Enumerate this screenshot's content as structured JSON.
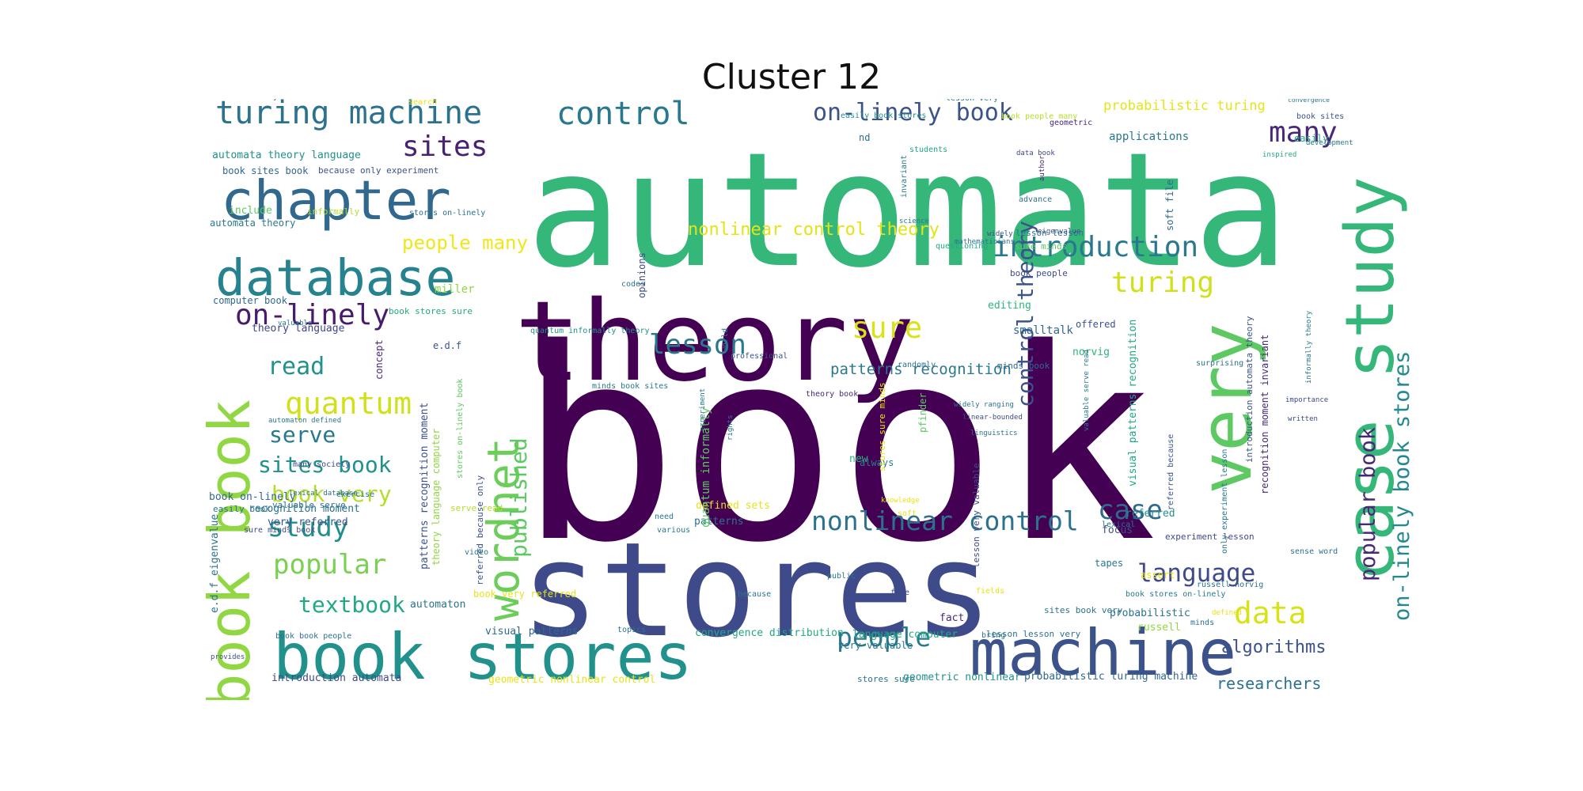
{
  "title": "Cluster 12",
  "palette": {
    "dark_purple": "#440154",
    "indigo": "#3b528b",
    "blue": "#2c6e8e",
    "teal": "#21918c",
    "green": "#35b779",
    "lime": "#90d743",
    "yellow": "#e5e419"
  },
  "words": [
    {
      "text": "book",
      "color": "#440154"
    },
    {
      "text": "automata",
      "color": "#35b779"
    },
    {
      "text": "stores",
      "color": "#3e4a89"
    },
    {
      "text": "theory",
      "color": "#440154"
    },
    {
      "text": "book stores",
      "color": "#21918c"
    },
    {
      "text": "machine",
      "color": "#3b528b"
    },
    {
      "text": "case study",
      "color": "#35b779"
    },
    {
      "text": "very",
      "color": "#5ec962"
    },
    {
      "text": "wordnet",
      "color": "#6ccd5a"
    },
    {
      "text": "book book",
      "color": "#90d743"
    },
    {
      "text": "chapter",
      "color": "#31688e"
    },
    {
      "text": "database",
      "color": "#26828e"
    },
    {
      "text": "turing machine",
      "color": "#2c728e"
    },
    {
      "text": "control",
      "color": "#2a788e"
    },
    {
      "text": "on-linely book",
      "color": "#3b528b"
    },
    {
      "text": "sites",
      "color": "#482173"
    },
    {
      "text": "many",
      "color": "#482878"
    },
    {
      "text": "introduction",
      "color": "#2a788e"
    },
    {
      "text": "nonlinear control theory",
      "color": "#e2e418"
    },
    {
      "text": "people many",
      "color": "#f1e51d"
    },
    {
      "text": "turing",
      "color": "#d0e11c"
    },
    {
      "text": "on-linely",
      "color": "#481a6c"
    },
    {
      "text": "lesson",
      "color": "#2a788e"
    },
    {
      "text": "sure",
      "color": "#d8e219"
    },
    {
      "text": "nonlinear",
      "color": "#3e4a89"
    },
    {
      "text": "popular book",
      "color": "#482878"
    },
    {
      "text": "on-linely book stores",
      "color": "#23898e"
    },
    {
      "text": "control theory",
      "color": "#3b528b"
    },
    {
      "text": "read",
      "color": "#21918c"
    },
    {
      "text": "quantum",
      "color": "#d0e11c"
    },
    {
      "text": "serve",
      "color": "#2a788e"
    },
    {
      "text": "sites book",
      "color": "#21918c"
    },
    {
      "text": "book very",
      "color": "#b5de2b"
    },
    {
      "text": "study",
      "color": "#218e8d"
    },
    {
      "text": "popular",
      "color": "#7ad151"
    },
    {
      "text": "textbook",
      "color": "#22a884"
    },
    {
      "text": "published",
      "color": "#5ec962"
    },
    {
      "text": "nonlinear control",
      "color": "#2c728e"
    },
    {
      "text": "case",
      "color": "#31688e"
    },
    {
      "text": "language",
      "color": "#3e4a89"
    },
    {
      "text": "people",
      "color": "#2a788e"
    },
    {
      "text": "data",
      "color": "#d8e219"
    },
    {
      "text": "algorithms",
      "color": "#3b528b"
    },
    {
      "text": "researchers",
      "color": "#2c728e"
    },
    {
      "text": "patterns recognition",
      "color": "#2a788e"
    },
    {
      "text": "probabilistic turing",
      "color": "#e5e419"
    },
    {
      "text": "applications",
      "color": "#2a788e"
    },
    {
      "text": "automata theory language",
      "color": "#21918c"
    },
    {
      "text": "book sites book",
      "color": "#31688e"
    },
    {
      "text": "because only experiment",
      "color": "#3b528b"
    },
    {
      "text": "automata theory",
      "color": "#2a788e"
    },
    {
      "text": "include",
      "color": "#5ec962"
    },
    {
      "text": "informally",
      "color": "#b5de2b"
    },
    {
      "text": "computer book",
      "color": "#31688e"
    },
    {
      "text": "theory language",
      "color": "#404688"
    },
    {
      "text": "miller",
      "color": "#90d743"
    },
    {
      "text": "book stores sure",
      "color": "#22a884"
    },
    {
      "text": "stores on-linely",
      "color": "#2c728e"
    },
    {
      "text": "e.d.f",
      "color": "#3b528b"
    },
    {
      "text": "concept",
      "color": "#482878"
    },
    {
      "text": "smalltalk",
      "color": "#31688e"
    },
    {
      "text": "editing",
      "color": "#2fb47c"
    },
    {
      "text": "norvig",
      "color": "#2fb47c"
    },
    {
      "text": "offered",
      "color": "#3b528b"
    },
    {
      "text": "soft file",
      "color": "#31688e"
    },
    {
      "text": "book people",
      "color": "#3e4a89"
    },
    {
      "text": "lesson lesson",
      "color": "#2c728e"
    },
    {
      "text": "sure minds",
      "color": "#5ec962"
    },
    {
      "text": "minds book",
      "color": "#31688e"
    },
    {
      "text": "minds book sites",
      "color": "#2a788e"
    },
    {
      "text": "quantum informally theory",
      "color": "#21918c"
    },
    {
      "text": "visual patterns recognition",
      "color": "#22a884"
    },
    {
      "text": "introduction automata theory",
      "color": "#3b528b"
    },
    {
      "text": "recognition moment invariant",
      "color": "#482878"
    },
    {
      "text": "patterns recognition moment",
      "color": "#3b528b"
    },
    {
      "text": "theory language computer",
      "color": "#90d743"
    },
    {
      "text": "referred because only",
      "color": "#3b528b"
    },
    {
      "text": "defined sets",
      "color": "#e5e419"
    },
    {
      "text": "patterns",
      "color": "#2c728e"
    },
    {
      "text": "book very referred",
      "color": "#e5e419"
    },
    {
      "text": "visual patterns",
      "color": "#31688e"
    },
    {
      "text": "automaton",
      "color": "#2c728e"
    },
    {
      "text": "introduction automata",
      "color": "#3e4a89"
    },
    {
      "text": "geometric nonlinear control",
      "color": "#e5e419"
    },
    {
      "text": "convergence distribution",
      "color": "#22a884"
    },
    {
      "text": "language computer",
      "color": "#22a884"
    },
    {
      "text": "very valuable",
      "color": "#2a788e"
    },
    {
      "text": "stores sure",
      "color": "#2c728e"
    },
    {
      "text": "geometric nonlinear",
      "color": "#21918c"
    },
    {
      "text": "probabilistic turing machine",
      "color": "#31688e"
    },
    {
      "text": "probabilistic",
      "color": "#2c728e"
    },
    {
      "text": "russell",
      "color": "#90d743"
    },
    {
      "text": "tapes",
      "color": "#2a788e"
    },
    {
      "text": "focus",
      "color": "#3b528b"
    },
    {
      "text": "fact",
      "color": "#482878"
    },
    {
      "text": "referred",
      "color": "#21918c"
    },
    {
      "text": "experiment lesson",
      "color": "#3e4a89"
    },
    {
      "text": "lesson lesson very",
      "color": "#2c728e"
    },
    {
      "text": "sites book very",
      "color": "#2c728e"
    },
    {
      "text": "book stores on-linely",
      "color": "#2a788e"
    },
    {
      "text": "recognition moment",
      "color": "#2c728e"
    },
    {
      "text": "book on-linely",
      "color": "#31688e"
    },
    {
      "text": "easily book",
      "color": "#2a788e"
    },
    {
      "text": "valuable serve",
      "color": "#2c728e"
    },
    {
      "text": "very referred",
      "color": "#3b528b"
    },
    {
      "text": "sure minds book",
      "color": "#3e4a89"
    },
    {
      "text": "serve read",
      "color": "#b5de2b"
    },
    {
      "text": "many society",
      "color": "#3e4a89"
    },
    {
      "text": "e.d.f eigenvalue",
      "color": "#2c728e"
    },
    {
      "text": "book book people",
      "color": "#2c728e"
    },
    {
      "text": "referred because",
      "color": "#3b528b"
    },
    {
      "text": "easily book stores",
      "color": "#21918c"
    },
    {
      "text": "book people many",
      "color": "#b5de2b"
    },
    {
      "text": "book sites",
      "color": "#3b528b"
    },
    {
      "text": "easily",
      "color": "#22a884"
    },
    {
      "text": "new",
      "color": "#2fb47c"
    },
    {
      "text": "always",
      "color": "#2a788e"
    },
    {
      "text": "nd",
      "color": "#2c728e"
    },
    {
      "text": "lesson very",
      "color": "#2a788e"
    },
    {
      "text": "very valuable serve",
      "color": "#482878"
    },
    {
      "text": "careful",
      "color": "#482878"
    },
    {
      "text": "geometric",
      "color": "#482878"
    },
    {
      "text": "students",
      "color": "#22a884"
    },
    {
      "text": "search",
      "color": "#e5e419"
    },
    {
      "text": "inspired",
      "color": "#22a884"
    },
    {
      "text": "development",
      "color": "#2a788e"
    },
    {
      "text": "convergence",
      "color": "#2a788e"
    },
    {
      "text": "data book",
      "color": "#3e4a89"
    },
    {
      "text": "author",
      "color": "#482878"
    },
    {
      "text": "advance",
      "color": "#2c728e"
    },
    {
      "text": "science",
      "color": "#2a788e"
    },
    {
      "text": "widely",
      "color": "#3b528b"
    },
    {
      "text": "questioning",
      "color": "#22a884"
    },
    {
      "text": "eigenvalue",
      "color": "#3e4a89"
    },
    {
      "text": "mathematicians",
      "color": "#2c728e"
    },
    {
      "text": "invariant",
      "color": "#2a788e"
    },
    {
      "text": "codes",
      "color": "#2c728e"
    },
    {
      "text": "professional",
      "color": "#3b528b"
    },
    {
      "text": "randomly",
      "color": "#2c728e"
    },
    {
      "text": "world",
      "color": "#2a788e"
    },
    {
      "text": "theory book",
      "color": "#482878"
    },
    {
      "text": "widely ranging",
      "color": "#2c728e"
    },
    {
      "text": "linear-bounded",
      "color": "#3e4a89"
    },
    {
      "text": "linguistics",
      "color": "#2c728e"
    },
    {
      "text": "experiment",
      "color": "#2a788e"
    },
    {
      "text": "rights",
      "color": "#2a788e"
    },
    {
      "text": "exercise",
      "color": "#2c728e"
    },
    {
      "text": "lexical database",
      "color": "#2c728e"
    },
    {
      "text": "need",
      "color": "#2a788e"
    },
    {
      "text": "various",
      "color": "#2a788e"
    },
    {
      "text": "opinions",
      "color": "#3e4a89"
    },
    {
      "text": "surprising",
      "color": "#2c728e"
    },
    {
      "text": "importance",
      "color": "#3e4a89"
    },
    {
      "text": "written",
      "color": "#3e4a89"
    },
    {
      "text": "lexical",
      "color": "#2c728e"
    },
    {
      "text": "bring",
      "color": "#2a788e"
    },
    {
      "text": "public",
      "color": "#2a788e"
    },
    {
      "text": "file",
      "color": "#3e4a89"
    },
    {
      "text": "because",
      "color": "#2c728e"
    },
    {
      "text": "topics",
      "color": "#2a788e"
    },
    {
      "text": "provides",
      "color": "#3b528b"
    },
    {
      "text": "pfinder",
      "color": "#5ec962"
    },
    {
      "text": "video",
      "color": "#2a788e"
    },
    {
      "text": "minds",
      "color": "#2c728e"
    },
    {
      "text": "sense word",
      "color": "#2c728e"
    },
    {
      "text": "russell norvig",
      "color": "#2c728e"
    },
    {
      "text": "only experiment lesson",
      "color": "#2a788e"
    },
    {
      "text": "assert",
      "color": "#e5e419"
    },
    {
      "text": "fields",
      "color": "#e5e419"
    },
    {
      "text": "knowledge",
      "color": "#e5e419"
    },
    {
      "text": "soft",
      "color": "#e5e419"
    },
    {
      "text": "defined",
      "color": "#e5e419"
    },
    {
      "text": "stores on-linely book",
      "color": "#5ec962"
    },
    {
      "text": "stores sure minds",
      "color": "#e5e419"
    },
    {
      "text": "quantum informally",
      "color": "#5ec962"
    },
    {
      "text": "informally theory",
      "color": "#2a788e"
    },
    {
      "text": "valuable",
      "color": "#2c728e"
    },
    {
      "text": "automaton defined",
      "color": "#2a788e"
    },
    {
      "text": "lesson very valuable",
      "color": "#3e4a89"
    },
    {
      "text": "valuable serve read",
      "color": "#2a788e"
    }
  ]
}
